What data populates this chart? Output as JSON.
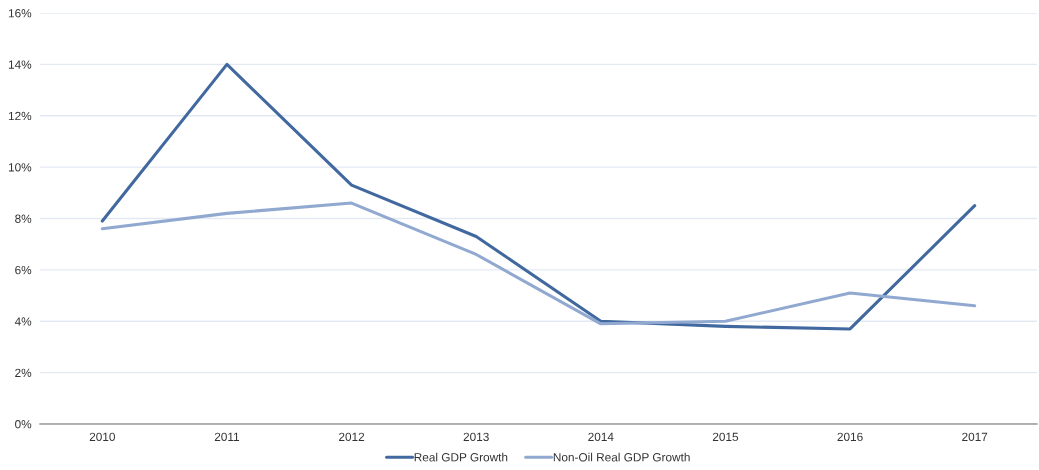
{
  "chart_data": {
    "type": "line",
    "categories": [
      "2010",
      "2011",
      "2012",
      "2013",
      "2014",
      "2015",
      "2016",
      "2017"
    ],
    "series": [
      {
        "name": "Real GDP Growth",
        "color": "#41699f",
        "values": [
          7.9,
          14.0,
          9.3,
          7.3,
          4.0,
          3.8,
          3.7,
          8.5
        ]
      },
      {
        "name": "Non-Oil Real GDP Growth",
        "color": "#91a9d0",
        "values": [
          7.6,
          8.2,
          8.6,
          6.6,
          3.9,
          4.0,
          5.1,
          4.6
        ]
      }
    ],
    "ylim": [
      0,
      16
    ],
    "yticks": [
      {
        "value": 0,
        "label": "0%"
      },
      {
        "value": 2,
        "label": "2%"
      },
      {
        "value": 4,
        "label": "4%"
      },
      {
        "value": 6,
        "label": "6%"
      },
      {
        "value": 8,
        "label": "8%"
      },
      {
        "value": 10,
        "label": "10%"
      },
      {
        "value": 12,
        "label": "12%"
      },
      {
        "value": 14,
        "label": "14%"
      },
      {
        "value": 16,
        "label": "16%"
      }
    ],
    "grid": "y",
    "legend": "bottom",
    "marker": "none",
    "line_style": "solid"
  }
}
